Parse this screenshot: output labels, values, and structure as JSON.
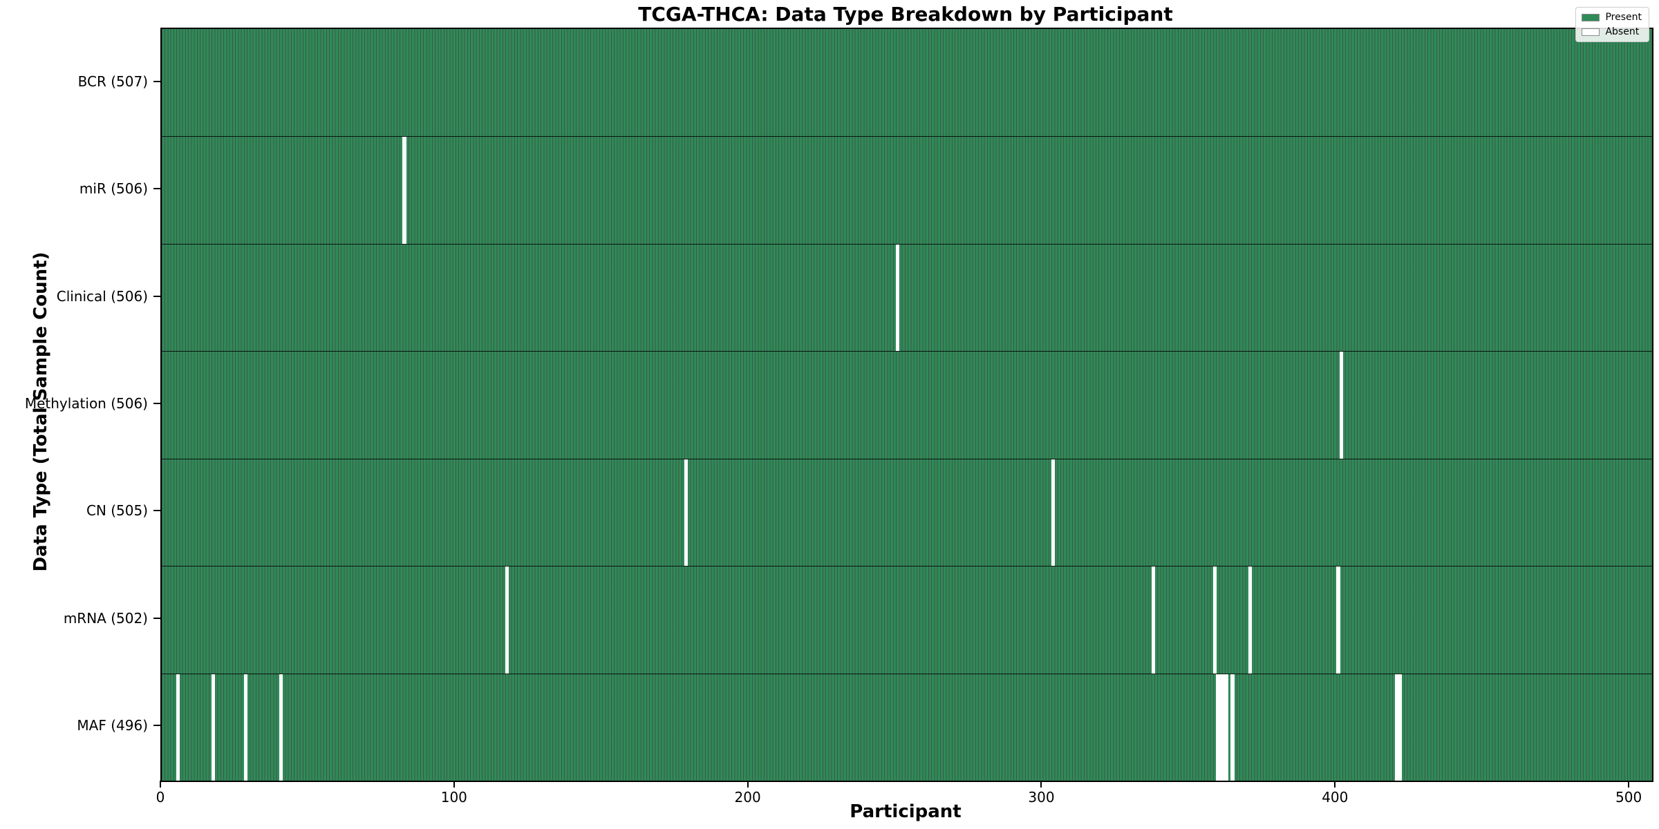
{
  "chart_data": {
    "type": "heatmap",
    "title": "TCGA-THCA: Data Type Breakdown by Participant",
    "xlabel": "Participant",
    "ylabel": "Data Type (Total Sample Count)",
    "x_ticks": [
      0,
      100,
      200,
      300,
      400,
      500
    ],
    "x_range": [
      0,
      507.5
    ],
    "n_participants": 507,
    "grid": false,
    "legend_position": "top-right",
    "legend": [
      {
        "label": "Present",
        "color": "#2E8B57"
      },
      {
        "label": "Absent",
        "color": "#FFFFFF"
      }
    ],
    "colors": {
      "present": "#2E8B57",
      "absent": "#FFFFFF",
      "bar_edge": "rgba(0,30,15,0.75)"
    },
    "rows": [
      {
        "label": "BCR (507)",
        "data_type": "BCR",
        "present_count": 507,
        "absent_participants": []
      },
      {
        "label": "miR (506)",
        "data_type": "miR",
        "present_count": 506,
        "absent_participants": [
          82
        ]
      },
      {
        "label": "Clinical (506)",
        "data_type": "Clinical",
        "present_count": 506,
        "absent_participants": [
          250
        ]
      },
      {
        "label": "Methylation (506)",
        "data_type": "Methylation",
        "present_count": 506,
        "absent_participants": [
          401
        ]
      },
      {
        "label": "CN (505)",
        "data_type": "CN",
        "present_count": 505,
        "absent_participants": [
          178,
          303
        ]
      },
      {
        "label": "mRNA (502)",
        "data_type": "mRNA",
        "present_count": 502,
        "absent_participants": [
          117,
          337,
          358,
          370,
          400
        ]
      },
      {
        "label": "MAF (496)",
        "data_type": "MAF",
        "present_count": 496,
        "absent_participants": [
          5,
          17,
          28,
          40,
          359,
          360,
          361,
          362,
          364,
          420,
          421
        ]
      }
    ]
  }
}
